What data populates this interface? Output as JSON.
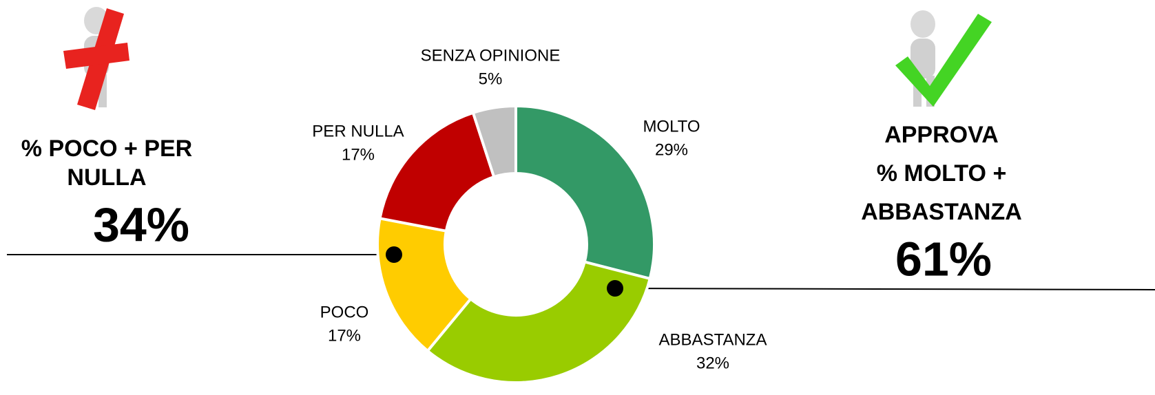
{
  "chart_data": {
    "type": "donut",
    "categories": [
      "MOLTO",
      "ABBASTANZA",
      "POCO",
      "PER NULLA",
      "SENZA OPINIONE"
    ],
    "values": [
      29,
      32,
      17,
      17,
      5
    ],
    "value_labels": [
      "29%",
      "32%",
      "17%",
      "17%",
      "5%"
    ],
    "colors": [
      "#339966",
      "#99cc00",
      "#ffcc00",
      "#c00000",
      "#c0c0c0"
    ],
    "annotations": [
      {
        "title": [
          "% POCO + PER",
          "NULLA"
        ],
        "text": "34%"
      },
      {
        "title": [
          "APPROVA",
          "% MOLTO +",
          "ABBASTANZA"
        ],
        "text": "61%"
      }
    ]
  }
}
